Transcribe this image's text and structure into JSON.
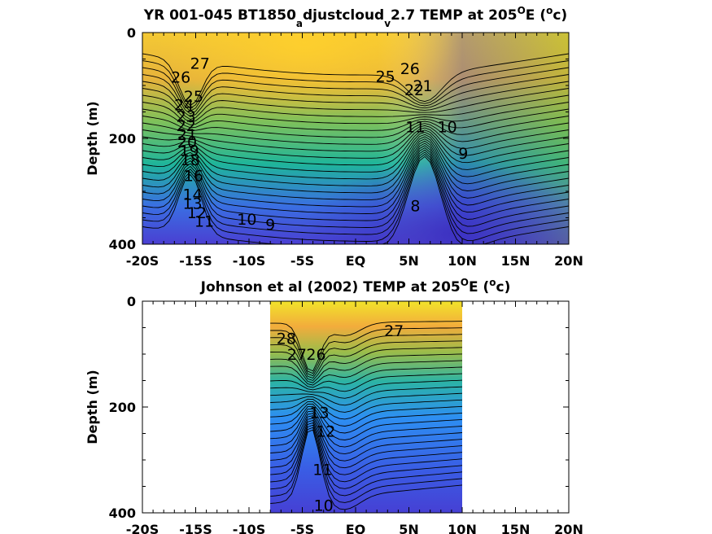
{
  "chart_data": [
    {
      "type": "heatmap",
      "title_parts": {
        "a": "YR 001-045 BT1850",
        "b": "a",
        "c": "djustcloud",
        "d": "v",
        "e": "2.7 TEMP at 205",
        "f": "O",
        "g": "E (",
        "h": "o",
        "i": "c)"
      },
      "ylabel": "Depth (m)",
      "xlim": [
        -20,
        20
      ],
      "ylim": [
        400,
        0
      ],
      "x_ticks": [
        -20,
        -15,
        -10,
        -5,
        0,
        5,
        10,
        15,
        20
      ],
      "x_tick_labels": [
        "-20S",
        "-15S",
        "-10S",
        "-5S",
        "EQ",
        "5N",
        "10N",
        "15N",
        "20N"
      ],
      "y_ticks": [
        0,
        200,
        400
      ],
      "y_tick_labels": [
        "0",
        "200",
        "400"
      ],
      "data_extent_x": [
        -20,
        20
      ],
      "colorscale": "parula",
      "contour_labels": [
        {
          "text": "27",
          "x": -14.6,
          "y": 58
        },
        {
          "text": "26",
          "x": -16.4,
          "y": 84
        },
        {
          "text": "25",
          "x": -15.2,
          "y": 120
        },
        {
          "text": "24",
          "x": -16.1,
          "y": 136
        },
        {
          "text": "23",
          "x": -15.9,
          "y": 158
        },
        {
          "text": "22",
          "x": -15.9,
          "y": 175
        },
        {
          "text": "21",
          "x": -15.8,
          "y": 192
        },
        {
          "text": "20",
          "x": -15.8,
          "y": 206
        },
        {
          "text": "19",
          "x": -15.6,
          "y": 222
        },
        {
          "text": "18",
          "x": -15.5,
          "y": 240
        },
        {
          "text": "16",
          "x": -15.2,
          "y": 270
        },
        {
          "text": "14",
          "x": -15.3,
          "y": 305
        },
        {
          "text": "13",
          "x": -15.3,
          "y": 322
        },
        {
          "text": "12",
          "x": -14.9,
          "y": 340
        },
        {
          "text": "11",
          "x": -14.2,
          "y": 356
        },
        {
          "text": "10",
          "x": -10.2,
          "y": 352
        },
        {
          "text": "9",
          "x": -8.0,
          "y": 362
        },
        {
          "text": "25",
          "x": 2.8,
          "y": 82
        },
        {
          "text": "26",
          "x": 5.1,
          "y": 68
        },
        {
          "text": "22",
          "x": 5.5,
          "y": 108
        },
        {
          "text": "21",
          "x": 6.3,
          "y": 100
        },
        {
          "text": "11",
          "x": 5.6,
          "y": 178
        },
        {
          "text": "10",
          "x": 8.6,
          "y": 178
        },
        {
          "text": "9",
          "x": 10.1,
          "y": 228
        },
        {
          "text": "8",
          "x": 5.6,
          "y": 327
        }
      ]
    },
    {
      "type": "heatmap",
      "title_parts": {
        "a": "Johnson et al (2002) TEMP at 205",
        "b": "O",
        "c": "E (",
        "d": "o",
        "e": "c)"
      },
      "ylabel": "Depth (m)",
      "xlim": [
        -20,
        20
      ],
      "ylim": [
        400,
        0
      ],
      "x_ticks": [
        -20,
        -15,
        -10,
        -5,
        0,
        5,
        10,
        15,
        20
      ],
      "x_tick_labels": [
        "-20S",
        "-15S",
        "-10S",
        "-5S",
        "EQ",
        "5N",
        "10N",
        "15N",
        "20N"
      ],
      "y_ticks": [
        0,
        200,
        400
      ],
      "y_tick_labels": [
        "0",
        "200",
        "400"
      ],
      "data_extent_x": [
        -8,
        10
      ],
      "colorscale": "parula",
      "contour_labels": [
        {
          "text": "28",
          "x": -6.5,
          "y": 70
        },
        {
          "text": "27",
          "x": -5.5,
          "y": 100
        },
        {
          "text": "26",
          "x": -3.7,
          "y": 100
        },
        {
          "text": "27",
          "x": 3.6,
          "y": 55
        },
        {
          "text": "13",
          "x": -3.4,
          "y": 210
        },
        {
          "text": "12",
          "x": -2.8,
          "y": 245
        },
        {
          "text": "11",
          "x": -3.1,
          "y": 318
        },
        {
          "text": "10",
          "x": -3.0,
          "y": 385
        }
      ]
    }
  ]
}
